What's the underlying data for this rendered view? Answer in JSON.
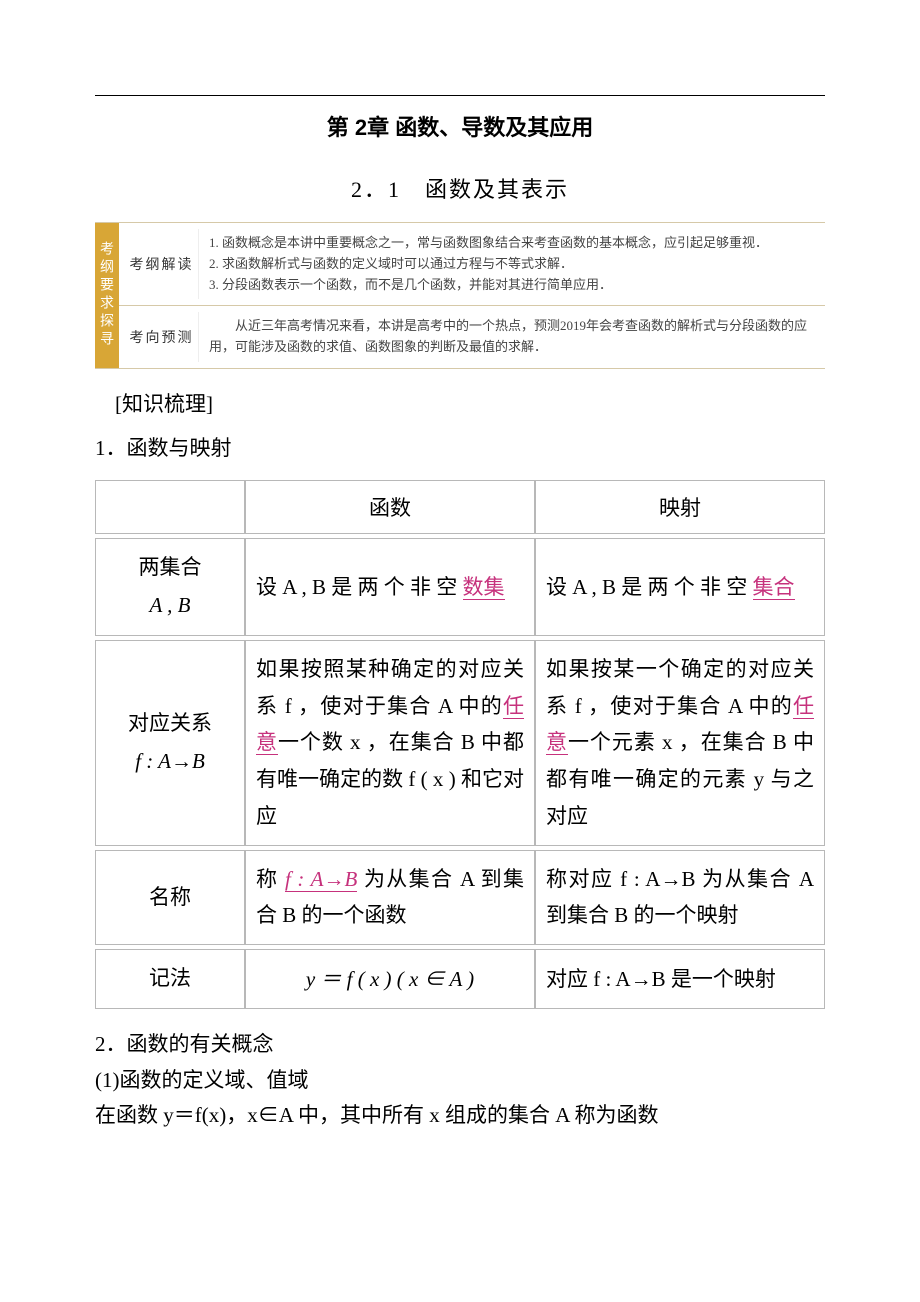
{
  "page": {
    "chapter_title": "第  2章  函数、导数及其应用",
    "section_title": "2．1　函数及其表示"
  },
  "exam_box": {
    "vertical_label": "考纲要求探寻",
    "rows": [
      {
        "label": "考纲解读",
        "lines": [
          "1. 函数概念是本讲中重要概念之一，常与函数图象结合来考查函数的基本概念，应引起足够重视．",
          "2. 求函数解析式与函数的定义域时可以通过方程与不等式求解．",
          "3. 分段函数表示一个函数，而不是几个函数，并能对其进行简单应用．"
        ]
      },
      {
        "label": "考向预测",
        "lines": [
          "　　从近三年高考情况来看，本讲是高考中的一个热点，预测2019年会考查函数的解析式与分段函数的应用，可能涉及函数的求值、函数图象的判断及最值的求解．"
        ]
      }
    ]
  },
  "colors": {
    "accent_orange": "#d8a636",
    "highlight_magenta": "#c6317c",
    "table_border": "#b8b8b8",
    "exam_border": "#d6c9a8"
  },
  "knowledge_heading": "[知识梳理]",
  "h1_text": "1．函数与映射",
  "table": {
    "header": [
      "",
      "函数",
      "映射"
    ],
    "rows": [
      {
        "head_lines": [
          "两集合",
          "A , B"
        ],
        "c1_prefix": "设 A , B 是 两 个 非 空",
        "c1_key": "数集",
        "c2_prefix": "设 A , B 是 两 个 非 空",
        "c2_key": "集合"
      },
      {
        "head_lines": [
          "对应关系",
          "f : A→B"
        ],
        "c1": "如果按照某种确定的对应关系 f ，使对于集合 A 中的",
        "c1_key": "任意",
        "c1_after": "一个数 x ，在集合 B 中都有唯一确定的数 f ( x ) 和它对应",
        "c2": "如果按某一个确定的对应关系 f ，使对于集合 A 中的",
        "c2_key": "任意",
        "c2_after": "一个元素 x ，在集合 B 中都有唯一确定的元素 y 与之对应"
      },
      {
        "head_lines": [
          "名称"
        ],
        "c1_pre": "称 ",
        "c1_key": "f : A→B",
        "c1_post": " 为从集合 A 到集合 B 的一个函数",
        "c2": "称对应 f : A→B 为从集合 A 到集合 B 的一个映射"
      },
      {
        "head_lines": [
          "记法"
        ],
        "c1_center": "y ＝ f ( x ) ( x ∈ A )",
        "c2": "对应 f : A→B 是一个映射"
      }
    ]
  },
  "sec2": {
    "h": "2．函数的有关概念",
    "p1": "(1)函数的定义域、值域",
    "p2": "在函数 y＝f(x)，x∈A 中，其中所有 x 组成的集合 A 称为函数"
  }
}
